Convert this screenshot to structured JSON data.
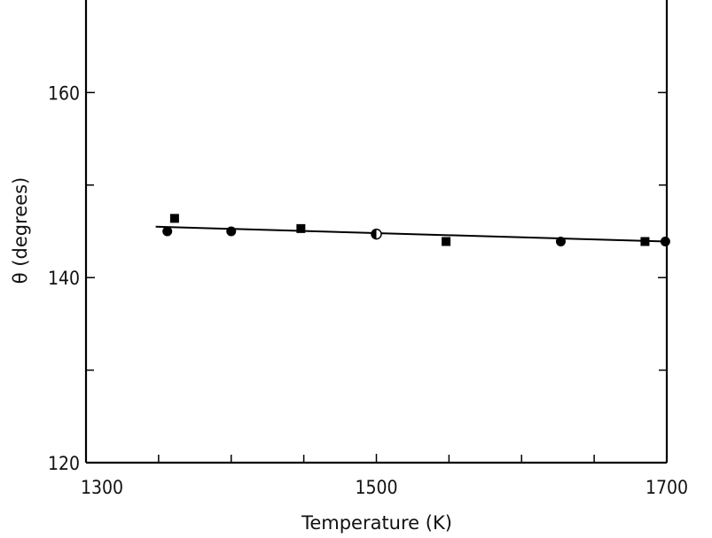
{
  "chart_data": {
    "type": "scatter",
    "title": "",
    "xlabel": "Temperature (K)",
    "ylabel": "θ (degrees)",
    "xlim": [
      1300,
      1700
    ],
    "ylim": [
      120,
      170
    ],
    "xticks": [
      1300,
      1500,
      1700
    ],
    "xticks_minor": [
      1350,
      1400,
      1450,
      1550,
      1600,
      1650
    ],
    "yticks": [
      120,
      140,
      160
    ],
    "yticks_minor": [
      130,
      150
    ],
    "grid": false,
    "series": [
      {
        "marker": "circle",
        "x": [
          1356,
          1400,
          1627,
          1699
        ],
        "y": [
          145.0,
          145.0,
          143.9,
          143.9
        ]
      },
      {
        "marker": "square",
        "x": [
          1361,
          1448,
          1548,
          1685
        ],
        "y": [
          146.4,
          145.3,
          143.9,
          143.9
        ]
      },
      {
        "marker": "half-circle",
        "x": [
          1500
        ],
        "y": [
          144.7
        ]
      }
    ],
    "fit_line": {
      "x": [
        1348,
        1700
      ],
      "y": [
        145.5,
        143.9
      ]
    },
    "color": "#000000"
  }
}
